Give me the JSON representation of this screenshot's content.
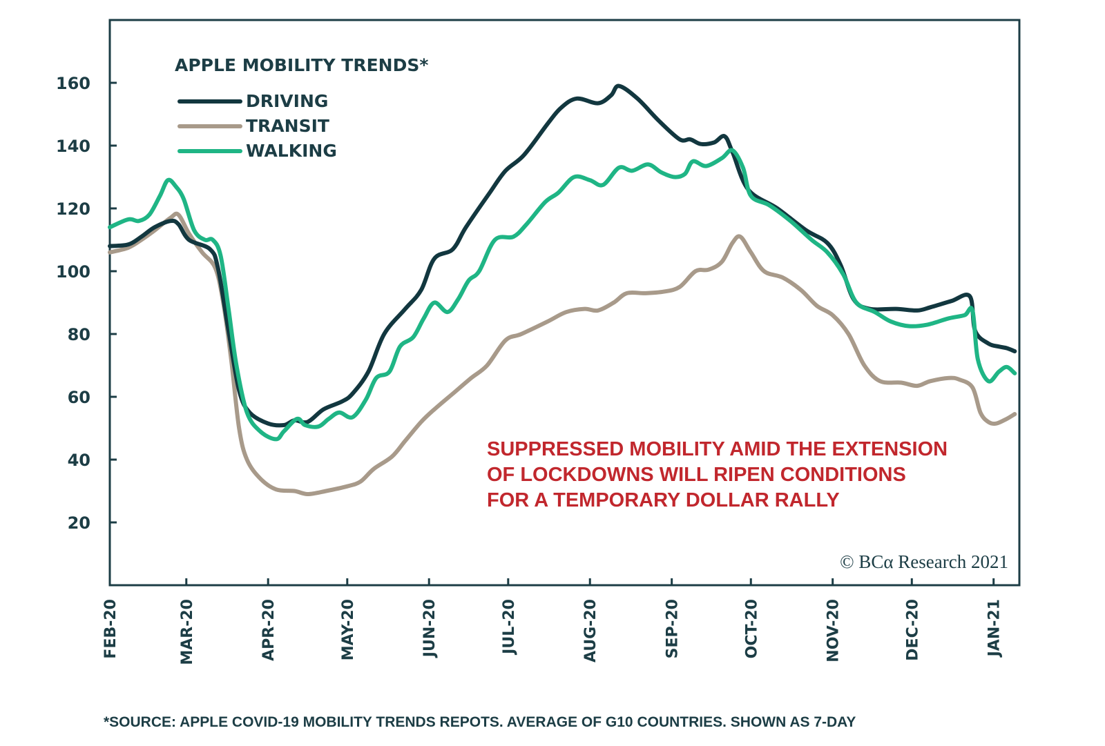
{
  "chart_data": {
    "type": "line",
    "title": "APPLE MOBILITY TRENDS*",
    "xlabel": "",
    "ylabel": "",
    "ylim": [
      0,
      180
    ],
    "yticks": [
      20,
      40,
      60,
      80,
      100,
      120,
      140,
      160
    ],
    "xtick_labels": [
      "FEB-20",
      "MAR-20",
      "APR-20",
      "MAY-20",
      "JUN-20",
      "JUL-20",
      "AUG-20",
      "SEP-20",
      "OCT-20",
      "NOV-20",
      "DEC-20",
      "JAN-21"
    ],
    "xtick_days": [
      0,
      29,
      60,
      90,
      121,
      151,
      182,
      213,
      243,
      274,
      304,
      335
    ],
    "x_unit": "days since 2020-02-01",
    "xlim": [
      0,
      345
    ],
    "grid": false,
    "legend_position": "top-left",
    "series": [
      {
        "name": "DRIVING",
        "color": "#12373f",
        "points": [
          [
            0,
            108
          ],
          [
            7,
            108.5
          ],
          [
            12,
            111
          ],
          [
            17,
            114
          ],
          [
            23,
            116
          ],
          [
            26,
            115
          ],
          [
            30,
            110
          ],
          [
            38,
            107
          ],
          [
            41,
            101
          ],
          [
            45,
            81
          ],
          [
            49,
            62
          ],
          [
            53,
            55
          ],
          [
            60,
            51.5
          ],
          [
            66,
            51
          ],
          [
            70,
            52.5
          ],
          [
            75,
            52
          ],
          [
            81,
            56
          ],
          [
            88,
            58.5
          ],
          [
            92,
            61
          ],
          [
            98,
            68
          ],
          [
            104,
            80
          ],
          [
            112,
            88
          ],
          [
            118,
            94
          ],
          [
            123,
            104
          ],
          [
            130,
            107
          ],
          [
            135,
            114
          ],
          [
            144,
            125
          ],
          [
            150,
            132
          ],
          [
            157,
            137
          ],
          [
            166,
            147
          ],
          [
            171,
            152
          ],
          [
            177,
            155
          ],
          [
            185,
            153.5
          ],
          [
            190,
            156
          ],
          [
            193,
            159
          ],
          [
            200,
            155
          ],
          [
            208,
            148
          ],
          [
            216,
            142
          ],
          [
            220,
            142
          ],
          [
            224,
            140.5
          ],
          [
            229,
            141
          ],
          [
            233,
            143
          ],
          [
            236,
            138
          ],
          [
            242,
            126
          ],
          [
            253,
            120
          ],
          [
            264,
            113
          ],
          [
            272,
            109
          ],
          [
            277,
            102
          ],
          [
            282,
            91
          ],
          [
            288,
            88
          ],
          [
            298,
            88
          ],
          [
            306,
            87.5
          ],
          [
            311,
            88.5
          ],
          [
            319,
            90.5
          ],
          [
            326,
            92
          ],
          [
            328,
            81
          ],
          [
            333,
            77
          ],
          [
            337,
            76
          ],
          [
            340,
            75.5
          ],
          [
            343,
            74.5
          ]
        ]
      },
      {
        "name": "TRANSIT",
        "color": "#a89a8a",
        "points": [
          [
            0,
            106
          ],
          [
            7,
            107.5
          ],
          [
            12,
            110
          ],
          [
            17,
            113
          ],
          [
            23,
            117
          ],
          [
            26,
            118
          ],
          [
            30,
            112
          ],
          [
            35,
            106
          ],
          [
            40,
            101
          ],
          [
            43,
            90
          ],
          [
            46,
            72
          ],
          [
            49,
            50
          ],
          [
            52,
            40
          ],
          [
            57,
            34
          ],
          [
            63,
            30.5
          ],
          [
            70,
            30
          ],
          [
            75,
            29
          ],
          [
            82,
            30
          ],
          [
            90,
            31.5
          ],
          [
            95,
            33
          ],
          [
            100,
            37
          ],
          [
            107,
            41
          ],
          [
            112,
            46
          ],
          [
            118,
            52
          ],
          [
            123,
            56
          ],
          [
            130,
            61
          ],
          [
            137,
            66
          ],
          [
            143,
            70
          ],
          [
            150,
            78
          ],
          [
            156,
            80
          ],
          [
            166,
            84
          ],
          [
            173,
            87
          ],
          [
            180,
            88
          ],
          [
            185,
            87.5
          ],
          [
            191,
            90
          ],
          [
            196,
            93
          ],
          [
            203,
            93
          ],
          [
            210,
            93.5
          ],
          [
            216,
            95
          ],
          [
            222,
            100
          ],
          [
            227,
            100.5
          ],
          [
            232,
            103
          ],
          [
            236,
            109
          ],
          [
            239,
            111
          ],
          [
            243,
            106
          ],
          [
            248,
            100
          ],
          [
            255,
            98
          ],
          [
            262,
            94
          ],
          [
            268,
            89
          ],
          [
            274,
            86
          ],
          [
            280,
            80
          ],
          [
            286,
            70
          ],
          [
            292,
            65
          ],
          [
            300,
            64.5
          ],
          [
            306,
            63.5
          ],
          [
            311,
            65
          ],
          [
            318,
            66
          ],
          [
            322,
            65.5
          ],
          [
            327,
            63
          ],
          [
            330,
            55
          ],
          [
            333,
            52
          ],
          [
            336,
            51.5
          ],
          [
            340,
            53
          ],
          [
            343,
            54.5
          ]
        ]
      },
      {
        "name": "WALKING",
        "color": "#1fb585",
        "points": [
          [
            0,
            114
          ],
          [
            7,
            116.5
          ],
          [
            11,
            116
          ],
          [
            15,
            118
          ],
          [
            19,
            124
          ],
          [
            22,
            129
          ],
          [
            25,
            127
          ],
          [
            28,
            123
          ],
          [
            32,
            113
          ],
          [
            36,
            110
          ],
          [
            39,
            110
          ],
          [
            42,
            105
          ],
          [
            45,
            88
          ],
          [
            48,
            70
          ],
          [
            52,
            55
          ],
          [
            57,
            49
          ],
          [
            63,
            46.5
          ],
          [
            66,
            49
          ],
          [
            71,
            53
          ],
          [
            74,
            51
          ],
          [
            79,
            50.5
          ],
          [
            83,
            53
          ],
          [
            87,
            55
          ],
          [
            92,
            53.5
          ],
          [
            97,
            59
          ],
          [
            101,
            66
          ],
          [
            106,
            68
          ],
          [
            110,
            76
          ],
          [
            115,
            79
          ],
          [
            119,
            85
          ],
          [
            123,
            90
          ],
          [
            128,
            87
          ],
          [
            132,
            91
          ],
          [
            136,
            97
          ],
          [
            140,
            100
          ],
          [
            146,
            110
          ],
          [
            153,
            111
          ],
          [
            158,
            115
          ],
          [
            165,
            122
          ],
          [
            170,
            125
          ],
          [
            176,
            130
          ],
          [
            182,
            129
          ],
          [
            187,
            127.5
          ],
          [
            193,
            133
          ],
          [
            198,
            132
          ],
          [
            204,
            134
          ],
          [
            209,
            131.5
          ],
          [
            214,
            130
          ],
          [
            218,
            131
          ],
          [
            221,
            135
          ],
          [
            226,
            133.5
          ],
          [
            232,
            136
          ],
          [
            236,
            138.5
          ],
          [
            240,
            133
          ],
          [
            243,
            124
          ],
          [
            250,
            121
          ],
          [
            258,
            116
          ],
          [
            266,
            110
          ],
          [
            272,
            106
          ],
          [
            278,
            99
          ],
          [
            283,
            90
          ],
          [
            290,
            87
          ],
          [
            296,
            84
          ],
          [
            303,
            82.5
          ],
          [
            310,
            83
          ],
          [
            318,
            85
          ],
          [
            324,
            86
          ],
          [
            327,
            87.5
          ],
          [
            329,
            72
          ],
          [
            333,
            65
          ],
          [
            337,
            68
          ],
          [
            340,
            69.5
          ],
          [
            343,
            67.5
          ]
        ]
      }
    ],
    "annotation": {
      "lines": [
        "SUPPRESSED MOBILITY AMID THE EXTENSION",
        "OF LOCKDOWNS WILL RIPEN CONDITIONS",
        "FOR A TEMPORARY DOLLAR RALLY"
      ]
    },
    "copyright": "© BCα Research 2021",
    "footnote": "*SOURCE: APPLE COVID-19 MOBILITY TRENDS REPOTS. AVERAGE OF G10 COUNTRIES. SHOWN AS 7-DAY"
  }
}
